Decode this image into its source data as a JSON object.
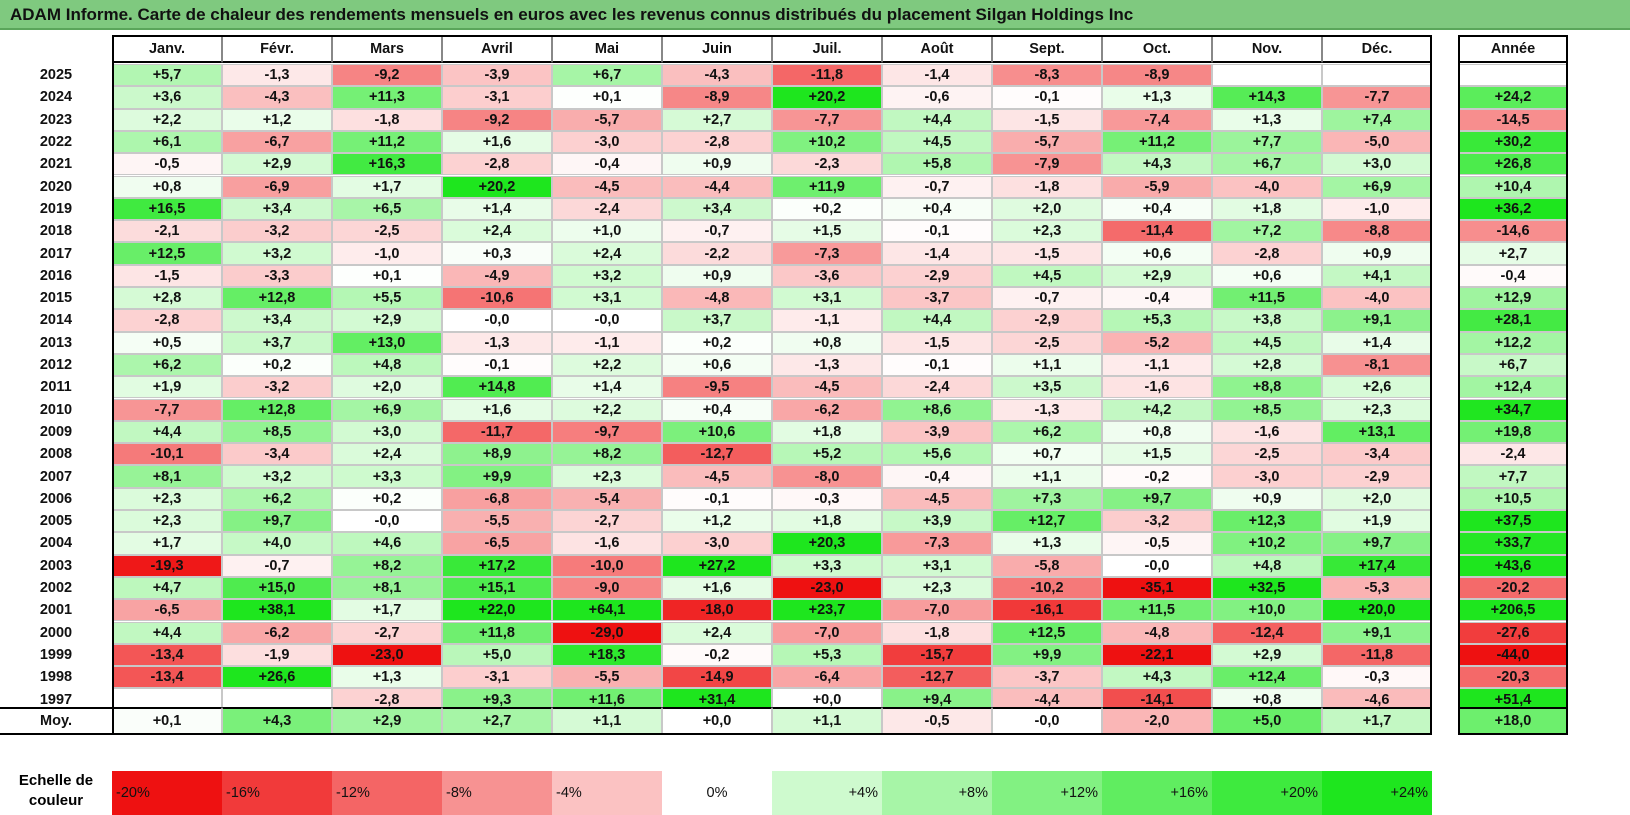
{
  "title": "ADAM Informe. Carte de chaleur des rendements mensuels en euros avec les revenus connus distribués du placement Silgan Holdings Inc",
  "colors": {
    "title_bg": "#7fc97f",
    "max_green": "#1ee61e",
    "max_red": "#ee1111"
  },
  "chart_data": {
    "type": "heatmap",
    "title": "ADAM Informe. Carte de chaleur des rendements mensuels en euros avec les revenus connus distribués du placement Silgan Holdings Inc",
    "columns": [
      "Janv.",
      "Févr.",
      "Mars",
      "Avril",
      "Mai",
      "Juin",
      "Juil.",
      "Août",
      "Sept.",
      "Oct.",
      "Nov.",
      "Déc."
    ],
    "year_column": "Année",
    "rows": [
      {
        "year": "2025",
        "values": [
          "+5,7",
          "-1,3",
          "-9,2",
          "-3,9",
          "+6,7",
          "-4,3",
          "-11,8",
          "-1,4",
          "-8,3",
          "-8,9",
          "",
          ""
        ],
        "annual": ""
      },
      {
        "year": "2024",
        "values": [
          "+3,6",
          "-4,3",
          "+11,3",
          "-3,1",
          "+0,1",
          "-8,9",
          "+20,2",
          "-0,6",
          "-0,1",
          "+1,3",
          "+14,3",
          "-7,7"
        ],
        "annual": "+24,2"
      },
      {
        "year": "2023",
        "values": [
          "+2,2",
          "+1,2",
          "-1,8",
          "-9,2",
          "-5,7",
          "+2,7",
          "-7,7",
          "+4,4",
          "-1,5",
          "-7,4",
          "+1,3",
          "+7,4"
        ],
        "annual": "-14,5"
      },
      {
        "year": "2022",
        "values": [
          "+6,1",
          "-6,7",
          "+11,2",
          "+1,6",
          "-3,0",
          "-2,8",
          "+10,2",
          "+4,5",
          "-5,7",
          "+11,2",
          "+7,7",
          "-5,0"
        ],
        "annual": "+30,2"
      },
      {
        "year": "2021",
        "values": [
          "-0,5",
          "+2,9",
          "+16,3",
          "-2,8",
          "-0,4",
          "+0,9",
          "-2,3",
          "+5,8",
          "-7,9",
          "+4,3",
          "+6,7",
          "+3,0"
        ],
        "annual": "+26,8"
      },
      {
        "year": "2020",
        "values": [
          "+0,8",
          "-6,9",
          "+1,7",
          "+20,2",
          "-4,5",
          "-4,4",
          "+11,9",
          "-0,7",
          "-1,8",
          "-5,9",
          "-4,0",
          "+6,9"
        ],
        "annual": "+10,4"
      },
      {
        "year": "2019",
        "values": [
          "+16,5",
          "+3,4",
          "+6,5",
          "+1,4",
          "-2,4",
          "+3,4",
          "+0,2",
          "+0,4",
          "+2,0",
          "+0,4",
          "+1,8",
          "-1,0"
        ],
        "annual": "+36,2"
      },
      {
        "year": "2018",
        "values": [
          "-2,1",
          "-3,2",
          "-2,5",
          "+2,4",
          "+1,0",
          "-0,7",
          "+1,5",
          "-0,1",
          "+2,3",
          "-11,4",
          "+7,2",
          "-8,8"
        ],
        "annual": "-14,6"
      },
      {
        "year": "2017",
        "values": [
          "+12,5",
          "+3,2",
          "-1,0",
          "+0,3",
          "+2,4",
          "-2,2",
          "-7,3",
          "-1,4",
          "-1,5",
          "+0,6",
          "-2,8",
          "+0,9"
        ],
        "annual": "+2,7"
      },
      {
        "year": "2016",
        "values": [
          "-1,5",
          "-3,3",
          "+0,1",
          "-4,9",
          "+3,2",
          "+0,9",
          "-3,6",
          "-2,9",
          "+4,5",
          "+2,9",
          "+0,6",
          "+4,1"
        ],
        "annual": "-0,4"
      },
      {
        "year": "2015",
        "values": [
          "+2,8",
          "+12,8",
          "+5,5",
          "-10,6",
          "+3,1",
          "-4,8",
          "+3,1",
          "-3,7",
          "-0,7",
          "-0,4",
          "+11,5",
          "-4,0"
        ],
        "annual": "+12,9"
      },
      {
        "year": "2014",
        "values": [
          "-2,8",
          "+3,4",
          "+2,9",
          "-0,0",
          "-0,0",
          "+3,7",
          "-1,1",
          "+4,4",
          "-2,9",
          "+5,3",
          "+3,8",
          "+9,1"
        ],
        "annual": "+28,1"
      },
      {
        "year": "2013",
        "values": [
          "+0,5",
          "+3,7",
          "+13,0",
          "-1,3",
          "-1,1",
          "+0,2",
          "+0,8",
          "-1,5",
          "-2,5",
          "-5,2",
          "+4,5",
          "+1,4"
        ],
        "annual": "+12,2"
      },
      {
        "year": "2012",
        "values": [
          "+6,2",
          "+0,2",
          "+4,8",
          "-0,1",
          "+2,2",
          "+0,6",
          "-1,3",
          "-0,1",
          "+1,1",
          "-1,1",
          "+2,8",
          "-8,1"
        ],
        "annual": "+6,7"
      },
      {
        "year": "2011",
        "values": [
          "+1,9",
          "-3,2",
          "+2,0",
          "+14,8",
          "+1,4",
          "-9,5",
          "-4,5",
          "-2,4",
          "+3,5",
          "-1,6",
          "+8,8",
          "+2,6"
        ],
        "annual": "+12,4"
      },
      {
        "year": "2010",
        "values": [
          "-7,7",
          "+12,8",
          "+6,9",
          "+1,6",
          "+2,2",
          "+0,4",
          "-6,2",
          "+8,6",
          "-1,3",
          "+4,2",
          "+8,5",
          "+2,3"
        ],
        "annual": "+34,7"
      },
      {
        "year": "2009",
        "values": [
          "+4,4",
          "+8,5",
          "+3,0",
          "-11,7",
          "-9,7",
          "+10,6",
          "+1,8",
          "-3,9",
          "+6,2",
          "+0,8",
          "-1,6",
          "+13,1"
        ],
        "annual": "+19,8"
      },
      {
        "year": "2008",
        "values": [
          "-10,1",
          "-3,4",
          "+2,4",
          "+8,9",
          "+8,2",
          "-12,7",
          "+5,2",
          "+5,6",
          "+0,7",
          "+1,5",
          "-2,5",
          "-3,4"
        ],
        "annual": "-2,4"
      },
      {
        "year": "2007",
        "values": [
          "+8,1",
          "+3,2",
          "+3,3",
          "+9,9",
          "+2,3",
          "-4,5",
          "-8,0",
          "-0,4",
          "+1,1",
          "-0,2",
          "-3,0",
          "-2,9"
        ],
        "annual": "+7,7"
      },
      {
        "year": "2006",
        "values": [
          "+2,3",
          "+6,2",
          "+0,2",
          "-6,8",
          "-5,4",
          "-0,1",
          "-0,3",
          "-4,5",
          "+7,3",
          "+9,7",
          "+0,9",
          "+2,0"
        ],
        "annual": "+10,5"
      },
      {
        "year": "2005",
        "values": [
          "+2,3",
          "+9,7",
          "-0,0",
          "-5,5",
          "-2,7",
          "+1,2",
          "+1,8",
          "+3,9",
          "+12,7",
          "-3,2",
          "+12,3",
          "+1,9"
        ],
        "annual": "+37,5"
      },
      {
        "year": "2004",
        "values": [
          "+1,7",
          "+4,0",
          "+4,6",
          "-6,5",
          "-1,6",
          "-3,0",
          "+20,3",
          "-7,3",
          "+1,3",
          "-0,5",
          "+10,2",
          "+9,7"
        ],
        "annual": "+33,7"
      },
      {
        "year": "2003",
        "values": [
          "-19,3",
          "-0,7",
          "+8,2",
          "+17,2",
          "-10,0",
          "+27,2",
          "+3,3",
          "+3,1",
          "-5,8",
          "-0,0",
          "+4,8",
          "+17,4"
        ],
        "annual": "+43,6"
      },
      {
        "year": "2002",
        "values": [
          "+4,7",
          "+15,0",
          "+8,1",
          "+15,1",
          "-9,0",
          "+1,6",
          "-23,0",
          "+2,3",
          "-10,2",
          "-35,1",
          "+32,5",
          "-5,3"
        ],
        "annual": "-20,2"
      },
      {
        "year": "2001",
        "values": [
          "-6,5",
          "+38,1",
          "+1,7",
          "+22,0",
          "+64,1",
          "-18,0",
          "+23,7",
          "-7,0",
          "-16,1",
          "+11,5",
          "+10,0",
          "+20,0"
        ],
        "annual": "+206,5"
      },
      {
        "year": "2000",
        "values": [
          "+4,4",
          "-6,2",
          "-2,7",
          "+11,8",
          "-29,0",
          "+2,4",
          "-7,0",
          "-1,8",
          "+12,5",
          "-4,8",
          "-12,4",
          "+9,1"
        ],
        "annual": "-27,6"
      },
      {
        "year": "1999",
        "values": [
          "-13,4",
          "-1,9",
          "-23,0",
          "+5,0",
          "+18,3",
          "-0,2",
          "+5,3",
          "-15,7",
          "+9,9",
          "-22,1",
          "+2,9",
          "-11,8"
        ],
        "annual": "-44,0"
      },
      {
        "year": "1998",
        "values": [
          "-13,4",
          "+26,6",
          "+1,3",
          "-3,1",
          "-5,5",
          "-14,9",
          "-6,4",
          "-12,7",
          "-3,7",
          "+4,3",
          "+12,4",
          "-0,3"
        ],
        "annual": "-20,3"
      },
      {
        "year": "1997",
        "values": [
          "",
          "",
          "-2,8",
          "+9,3",
          "+11,6",
          "+31,4",
          "+0,0",
          "+9,4",
          "-4,4",
          "-14,1",
          "+0,8",
          "-4,6"
        ],
        "annual": "+51,4"
      }
    ],
    "average": {
      "label": "Moy.",
      "values": [
        "+0,1",
        "+4,3",
        "+2,9",
        "+2,7",
        "+1,1",
        "+0,0",
        "+1,1",
        "-0,5",
        "-0,0",
        "-2,0",
        "+5,0",
        "+1,7"
      ],
      "annual": "+18,0"
    },
    "color_scale": {
      "label_line1": "Echelle de",
      "label_line2": "couleur",
      "stops": [
        "-20%",
        "-16%",
        "-12%",
        "-8%",
        "-4%",
        "0%",
        "+4%",
        "+8%",
        "+12%",
        "+16%",
        "+20%",
        "+24%"
      ]
    }
  }
}
